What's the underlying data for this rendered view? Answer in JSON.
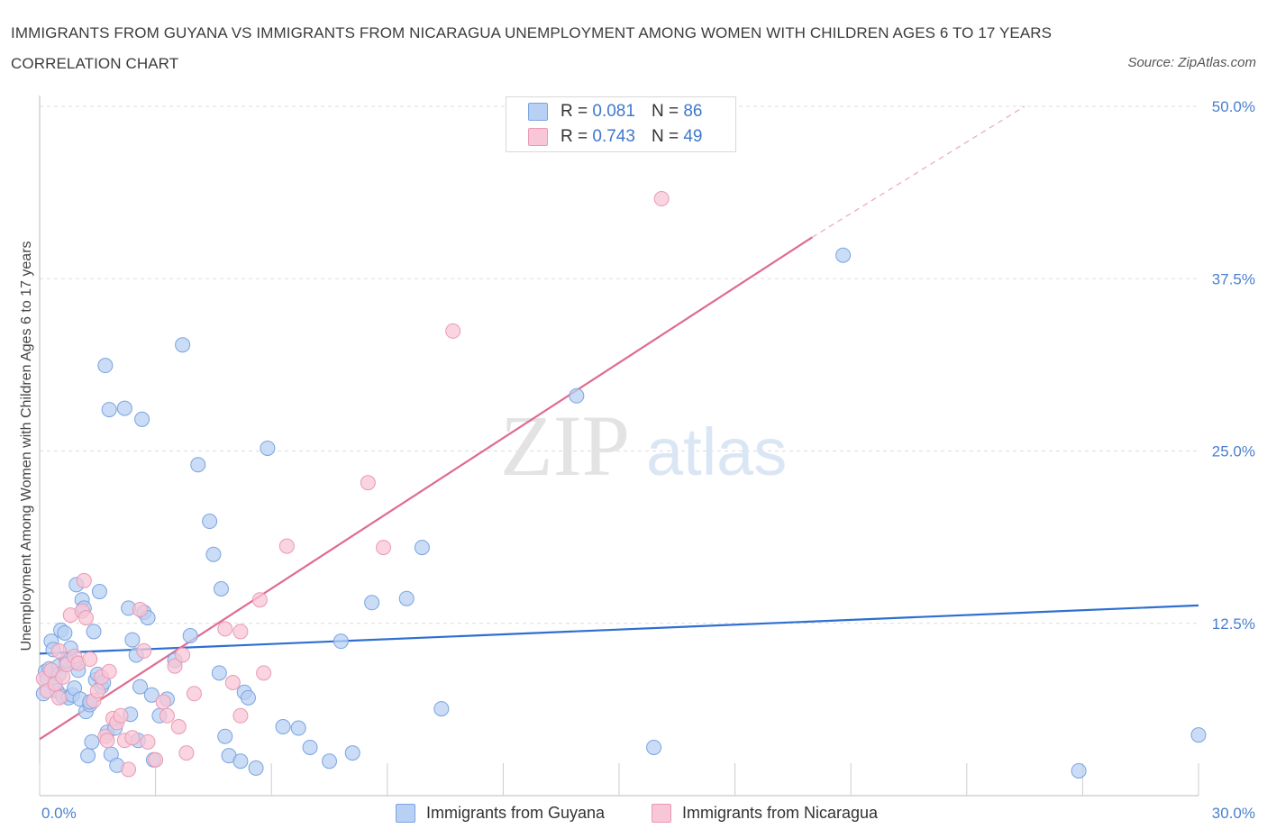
{
  "header": {
    "title": "IMMIGRANTS FROM GUYANA VS IMMIGRANTS FROM NICARAGUA UNEMPLOYMENT AMONG WOMEN WITH CHILDREN AGES 6 TO 17 YEARS CORRELATION CHART",
    "source": "Source: ZipAtlas.com"
  },
  "watermark": {
    "zip": "ZIP",
    "atlas": "atlas"
  },
  "legend": {
    "items": [
      {
        "r_label": "R =",
        "r_value": "0.081",
        "n_label": "N =",
        "n_value": "86"
      },
      {
        "r_label": "R =",
        "r_value": "0.743",
        "n_label": "N =",
        "n_value": "49"
      }
    ]
  },
  "bottom_legend": {
    "series_a": "Immigrants from Guyana",
    "series_b": "Immigrants from Nicaragua"
  },
  "colors": {
    "guyana_fill": "#b8d0f3",
    "guyana_stroke": "#7aa4e0",
    "guyana_line": "#2e6fd1",
    "nicaragua_fill": "#f8c6d6",
    "nicaragua_stroke": "#e99ab3",
    "nicaragua_line": "#e06a93",
    "axis_text": "#4a7fd0"
  },
  "chart_data": {
    "type": "scatter",
    "title": "IMMIGRANTS FROM GUYANA VS IMMIGRANTS FROM NICARAGUA UNEMPLOYMENT AMONG WOMEN WITH CHILDREN AGES 6 TO 17 YEARS CORRELATION CHART",
    "xlabel": "",
    "ylabel": "Unemployment Among Women with Children Ages 6 to 17 years",
    "xlim": [
      0,
      30
    ],
    "ylim": [
      0,
      50
    ],
    "x_tick_labels": [
      "0.0%",
      "30.0%"
    ],
    "y_ticks": [
      12.5,
      25.0,
      37.5,
      50.0
    ],
    "y_tick_labels": [
      "12.5%",
      "25.0%",
      "37.5%",
      "50.0%"
    ],
    "grid": true,
    "legend_position": "top-center",
    "series": [
      {
        "name": "Immigrants from Guyana",
        "R": 0.081,
        "N": 86,
        "trend": {
          "x": [
            0,
            30
          ],
          "y": [
            10.3,
            13.8
          ]
        },
        "points": [
          [
            0.1,
            7.4
          ],
          [
            0.15,
            9.0
          ],
          [
            0.2,
            8.5
          ],
          [
            0.25,
            9.2
          ],
          [
            0.3,
            11.2
          ],
          [
            0.35,
            10.6
          ],
          [
            0.4,
            8.2
          ],
          [
            0.45,
            7.6
          ],
          [
            0.5,
            9.4
          ],
          [
            0.55,
            12.0
          ],
          [
            0.6,
            7.2
          ],
          [
            0.65,
            11.8
          ],
          [
            0.7,
            9.6
          ],
          [
            0.75,
            7.1
          ],
          [
            0.8,
            10.7
          ],
          [
            0.85,
            7.3
          ],
          [
            0.9,
            7.8
          ],
          [
            0.95,
            15.3
          ],
          [
            1.0,
            9.1
          ],
          [
            1.05,
            7.0
          ],
          [
            1.1,
            14.2
          ],
          [
            1.15,
            13.6
          ],
          [
            1.2,
            6.1
          ],
          [
            1.25,
            2.9
          ],
          [
            1.3,
            6.6
          ],
          [
            1.35,
            3.9
          ],
          [
            1.4,
            11.9
          ],
          [
            1.45,
            8.4
          ],
          [
            1.5,
            8.8
          ],
          [
            1.55,
            14.8
          ],
          [
            1.6,
            7.9
          ],
          [
            1.7,
            31.2
          ],
          [
            1.75,
            4.6
          ],
          [
            1.8,
            28.0
          ],
          [
            1.85,
            3.0
          ],
          [
            2.0,
            2.2
          ],
          [
            2.2,
            28.1
          ],
          [
            2.3,
            13.6
          ],
          [
            2.35,
            5.9
          ],
          [
            2.4,
            11.3
          ],
          [
            2.5,
            10.2
          ],
          [
            2.6,
            7.9
          ],
          [
            2.65,
            27.3
          ],
          [
            2.7,
            13.3
          ],
          [
            2.8,
            12.9
          ],
          [
            2.9,
            7.3
          ],
          [
            2.95,
            2.6
          ],
          [
            3.1,
            5.8
          ],
          [
            3.5,
            9.8
          ],
          [
            3.7,
            32.7
          ],
          [
            3.9,
            11.6
          ],
          [
            4.1,
            24.0
          ],
          [
            4.4,
            19.9
          ],
          [
            4.5,
            17.5
          ],
          [
            4.65,
            8.9
          ],
          [
            4.7,
            15.0
          ],
          [
            4.8,
            4.3
          ],
          [
            4.9,
            2.9
          ],
          [
            5.2,
            2.5
          ],
          [
            5.3,
            7.5
          ],
          [
            5.4,
            7.1
          ],
          [
            5.6,
            2.0
          ],
          [
            5.9,
            25.2
          ],
          [
            6.3,
            5.0
          ],
          [
            6.7,
            4.9
          ],
          [
            7.0,
            3.5
          ],
          [
            7.5,
            2.5
          ],
          [
            7.8,
            11.2
          ],
          [
            8.1,
            3.1
          ],
          [
            8.6,
            14.0
          ],
          [
            9.5,
            14.3
          ],
          [
            9.9,
            18.0
          ],
          [
            10.4,
            6.3
          ],
          [
            13.9,
            29.0
          ],
          [
            15.9,
            3.5
          ],
          [
            20.8,
            39.2
          ],
          [
            26.9,
            1.8
          ],
          [
            30.0,
            4.4
          ],
          [
            0.5,
            8.8
          ],
          [
            0.9,
            9.7
          ],
          [
            1.3,
            6.8
          ],
          [
            1.65,
            8.2
          ],
          [
            3.3,
            7.0
          ],
          [
            2.55,
            4.0
          ],
          [
            1.95,
            4.9
          ],
          [
            0.7,
            9.8
          ]
        ]
      },
      {
        "name": "Immigrants from Nicaragua",
        "R": 0.743,
        "N": 49,
        "trend": {
          "x": [
            0,
            20
          ],
          "y": [
            4.1,
            40.5
          ]
        },
        "trend_dashed": {
          "x": [
            20,
            25.5
          ],
          "y": [
            40.5,
            50.0
          ]
        },
        "points": [
          [
            0.1,
            8.5
          ],
          [
            0.2,
            7.6
          ],
          [
            0.3,
            9.1
          ],
          [
            0.4,
            8.1
          ],
          [
            0.5,
            10.5
          ],
          [
            0.6,
            8.6
          ],
          [
            0.7,
            9.5
          ],
          [
            0.8,
            13.1
          ],
          [
            0.9,
            10.1
          ],
          [
            1.0,
            9.6
          ],
          [
            1.1,
            13.4
          ],
          [
            1.15,
            15.6
          ],
          [
            1.2,
            12.9
          ],
          [
            1.3,
            9.9
          ],
          [
            1.4,
            6.9
          ],
          [
            1.5,
            7.6
          ],
          [
            1.6,
            8.6
          ],
          [
            1.7,
            4.3
          ],
          [
            1.75,
            4.0
          ],
          [
            1.8,
            9.0
          ],
          [
            1.9,
            5.6
          ],
          [
            2.0,
            5.3
          ],
          [
            2.1,
            5.8
          ],
          [
            2.2,
            4.0
          ],
          [
            2.3,
            1.9
          ],
          [
            2.4,
            4.2
          ],
          [
            2.6,
            13.5
          ],
          [
            2.7,
            10.5
          ],
          [
            2.8,
            3.9
          ],
          [
            3.0,
            2.6
          ],
          [
            3.2,
            6.8
          ],
          [
            3.3,
            5.8
          ],
          [
            3.5,
            9.4
          ],
          [
            3.6,
            5.0
          ],
          [
            3.7,
            10.2
          ],
          [
            3.8,
            3.1
          ],
          [
            4.0,
            7.4
          ],
          [
            4.8,
            12.1
          ],
          [
            5.0,
            8.2
          ],
          [
            5.2,
            11.9
          ],
          [
            5.2,
            5.8
          ],
          [
            5.7,
            14.2
          ],
          [
            5.8,
            8.9
          ],
          [
            6.4,
            18.1
          ],
          [
            8.5,
            22.7
          ],
          [
            8.9,
            18.0
          ],
          [
            10.7,
            33.7
          ],
          [
            16.1,
            43.3
          ],
          [
            0.5,
            7.1
          ]
        ]
      }
    ]
  }
}
